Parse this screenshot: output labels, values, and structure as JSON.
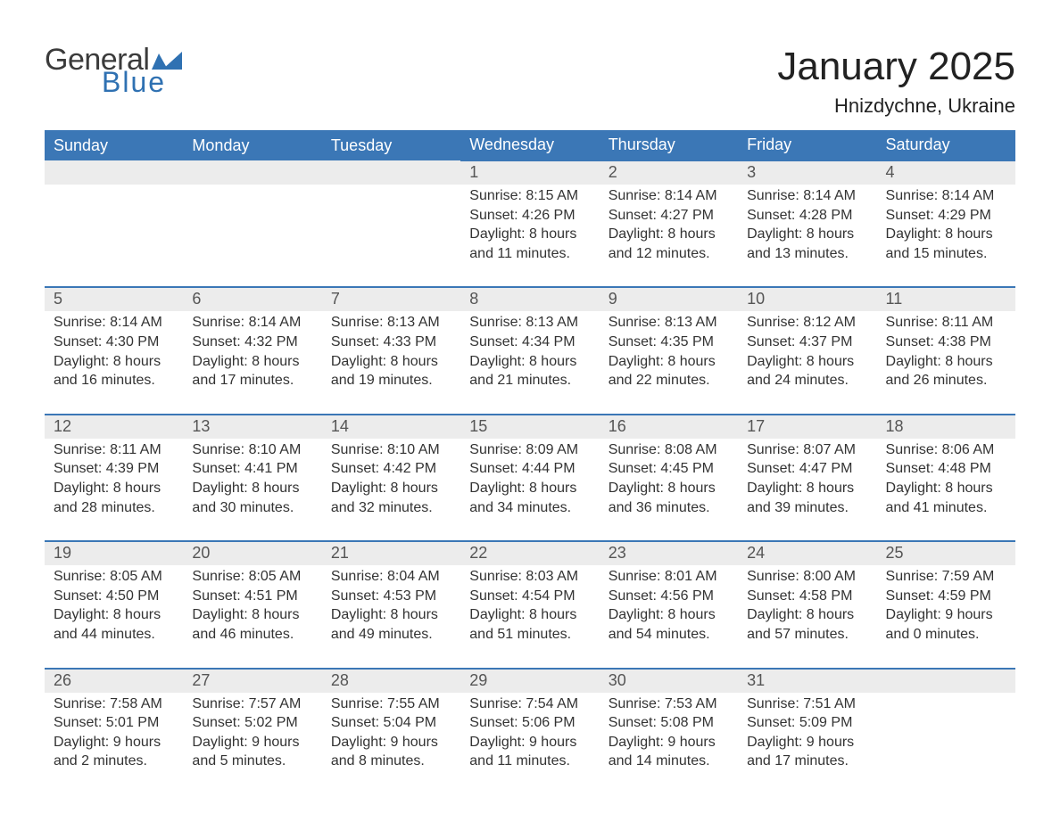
{
  "logo": {
    "text1": "General",
    "text2": "Blue"
  },
  "title": "January 2025",
  "location": "Hnizdychne, Ukraine",
  "colors": {
    "header_bg": "#3b77b6",
    "header_text": "#ffffff",
    "row_border": "#3b77b6",
    "daynum_bg": "#ececec",
    "daynum_text": "#555555",
    "body_text": "#333333",
    "logo_blue": "#2f71b2"
  },
  "weekdays": [
    "Sunday",
    "Monday",
    "Tuesday",
    "Wednesday",
    "Thursday",
    "Friday",
    "Saturday"
  ],
  "weeks": [
    [
      null,
      null,
      null,
      {
        "d": "1",
        "sunrise": "8:15 AM",
        "sunset": "4:26 PM",
        "day_h": "8",
        "day_m": "11"
      },
      {
        "d": "2",
        "sunrise": "8:14 AM",
        "sunset": "4:27 PM",
        "day_h": "8",
        "day_m": "12"
      },
      {
        "d": "3",
        "sunrise": "8:14 AM",
        "sunset": "4:28 PM",
        "day_h": "8",
        "day_m": "13"
      },
      {
        "d": "4",
        "sunrise": "8:14 AM",
        "sunset": "4:29 PM",
        "day_h": "8",
        "day_m": "15"
      }
    ],
    [
      {
        "d": "5",
        "sunrise": "8:14 AM",
        "sunset": "4:30 PM",
        "day_h": "8",
        "day_m": "16"
      },
      {
        "d": "6",
        "sunrise": "8:14 AM",
        "sunset": "4:32 PM",
        "day_h": "8",
        "day_m": "17"
      },
      {
        "d": "7",
        "sunrise": "8:13 AM",
        "sunset": "4:33 PM",
        "day_h": "8",
        "day_m": "19"
      },
      {
        "d": "8",
        "sunrise": "8:13 AM",
        "sunset": "4:34 PM",
        "day_h": "8",
        "day_m": "21"
      },
      {
        "d": "9",
        "sunrise": "8:13 AM",
        "sunset": "4:35 PM",
        "day_h": "8",
        "day_m": "22"
      },
      {
        "d": "10",
        "sunrise": "8:12 AM",
        "sunset": "4:37 PM",
        "day_h": "8",
        "day_m": "24"
      },
      {
        "d": "11",
        "sunrise": "8:11 AM",
        "sunset": "4:38 PM",
        "day_h": "8",
        "day_m": "26"
      }
    ],
    [
      {
        "d": "12",
        "sunrise": "8:11 AM",
        "sunset": "4:39 PM",
        "day_h": "8",
        "day_m": "28"
      },
      {
        "d": "13",
        "sunrise": "8:10 AM",
        "sunset": "4:41 PM",
        "day_h": "8",
        "day_m": "30"
      },
      {
        "d": "14",
        "sunrise": "8:10 AM",
        "sunset": "4:42 PM",
        "day_h": "8",
        "day_m": "32"
      },
      {
        "d": "15",
        "sunrise": "8:09 AM",
        "sunset": "4:44 PM",
        "day_h": "8",
        "day_m": "34"
      },
      {
        "d": "16",
        "sunrise": "8:08 AM",
        "sunset": "4:45 PM",
        "day_h": "8",
        "day_m": "36"
      },
      {
        "d": "17",
        "sunrise": "8:07 AM",
        "sunset": "4:47 PM",
        "day_h": "8",
        "day_m": "39"
      },
      {
        "d": "18",
        "sunrise": "8:06 AM",
        "sunset": "4:48 PM",
        "day_h": "8",
        "day_m": "41"
      }
    ],
    [
      {
        "d": "19",
        "sunrise": "8:05 AM",
        "sunset": "4:50 PM",
        "day_h": "8",
        "day_m": "44"
      },
      {
        "d": "20",
        "sunrise": "8:05 AM",
        "sunset": "4:51 PM",
        "day_h": "8",
        "day_m": "46"
      },
      {
        "d": "21",
        "sunrise": "8:04 AM",
        "sunset": "4:53 PM",
        "day_h": "8",
        "day_m": "49"
      },
      {
        "d": "22",
        "sunrise": "8:03 AM",
        "sunset": "4:54 PM",
        "day_h": "8",
        "day_m": "51"
      },
      {
        "d": "23",
        "sunrise": "8:01 AM",
        "sunset": "4:56 PM",
        "day_h": "8",
        "day_m": "54"
      },
      {
        "d": "24",
        "sunrise": "8:00 AM",
        "sunset": "4:58 PM",
        "day_h": "8",
        "day_m": "57"
      },
      {
        "d": "25",
        "sunrise": "7:59 AM",
        "sunset": "4:59 PM",
        "day_h": "9",
        "day_m": "0"
      }
    ],
    [
      {
        "d": "26",
        "sunrise": "7:58 AM",
        "sunset": "5:01 PM",
        "day_h": "9",
        "day_m": "2"
      },
      {
        "d": "27",
        "sunrise": "7:57 AM",
        "sunset": "5:02 PM",
        "day_h": "9",
        "day_m": "5"
      },
      {
        "d": "28",
        "sunrise": "7:55 AM",
        "sunset": "5:04 PM",
        "day_h": "9",
        "day_m": "8"
      },
      {
        "d": "29",
        "sunrise": "7:54 AM",
        "sunset": "5:06 PM",
        "day_h": "9",
        "day_m": "11"
      },
      {
        "d": "30",
        "sunrise": "7:53 AM",
        "sunset": "5:08 PM",
        "day_h": "9",
        "day_m": "14"
      },
      {
        "d": "31",
        "sunrise": "7:51 AM",
        "sunset": "5:09 PM",
        "day_h": "9",
        "day_m": "17"
      },
      null
    ]
  ],
  "labels": {
    "sunrise": "Sunrise:",
    "sunset": "Sunset:",
    "daylight": "Daylight:",
    "hours": "hours",
    "and": "and",
    "minutes": "minutes."
  }
}
